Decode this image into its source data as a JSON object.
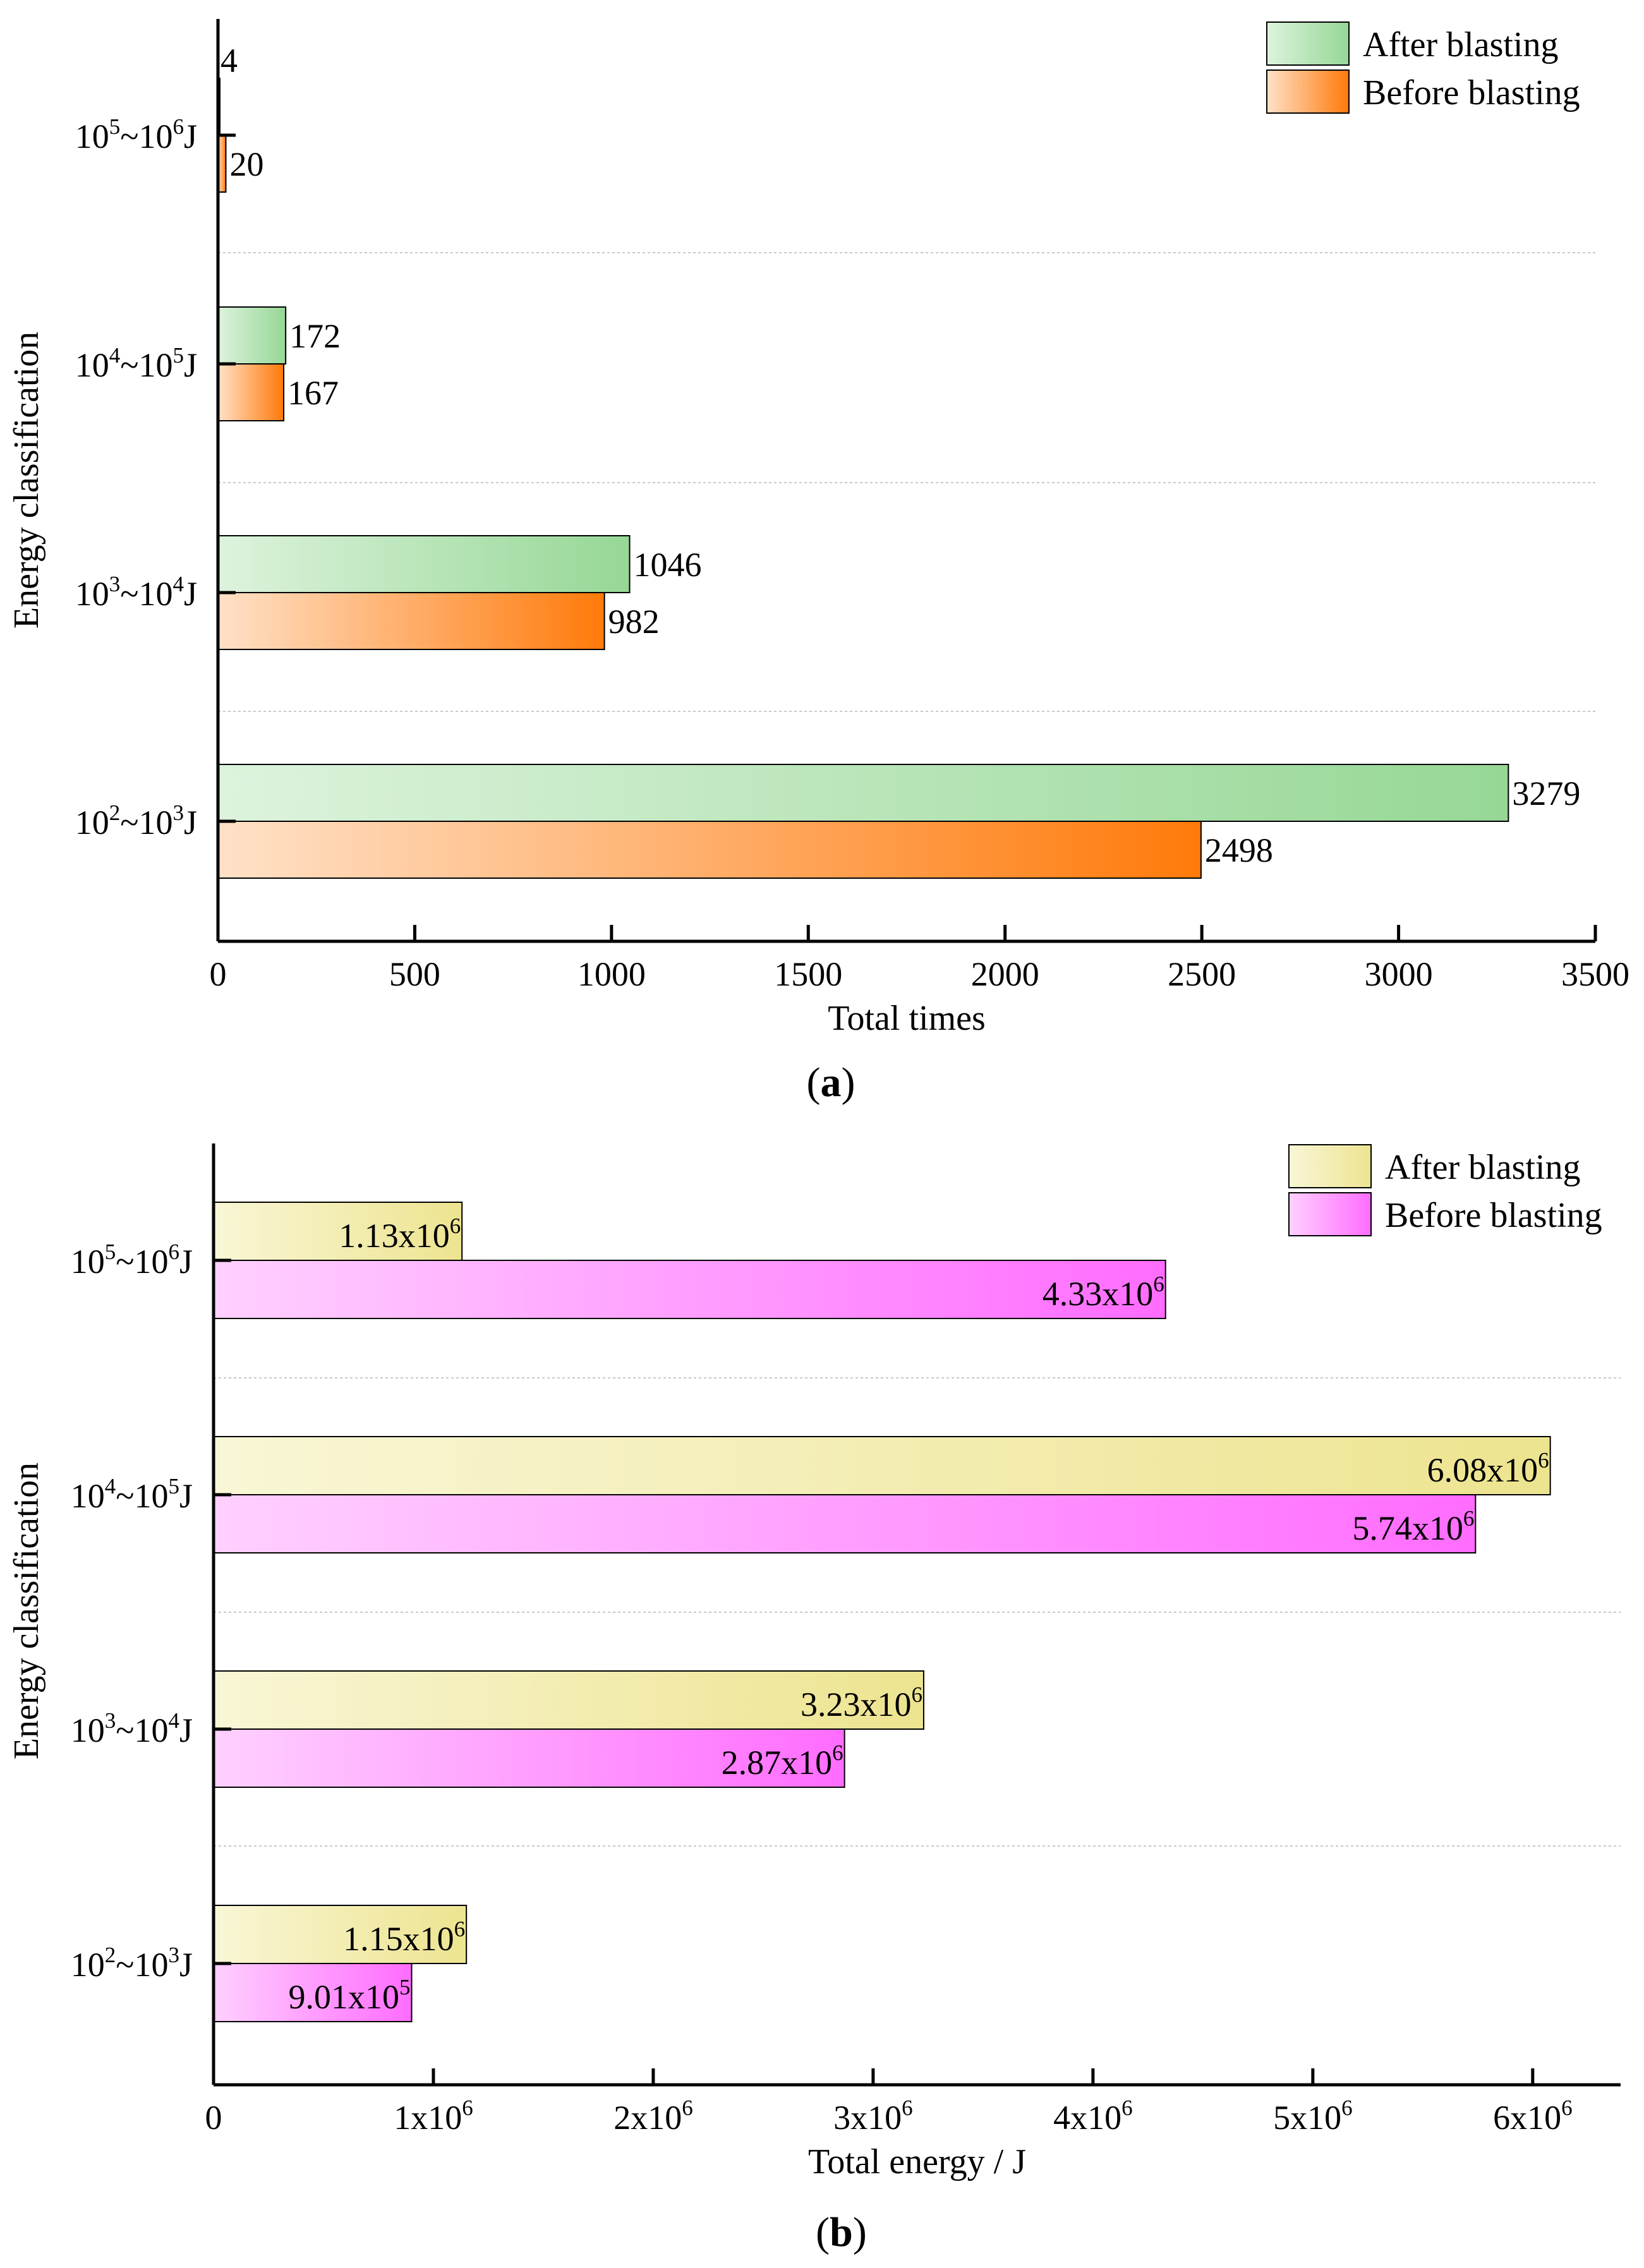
{
  "colors": {
    "green_light": "#DDF3DD",
    "green_dark": "#96D796",
    "orange_light": "#FFE1C8",
    "orange_dark": "#FF7A0A",
    "yellow_light": "#F9F6D6",
    "yellow_dark": "#EDE490",
    "pink_light": "#FFD0FF",
    "pink_dark": "#FF6CFF",
    "gridline": "#C8C8C8"
  },
  "chart_data": [
    {
      "id": "a",
      "type": "bar",
      "orientation": "horizontal",
      "panel_label": "a",
      "title": "",
      "xlabel": "Total times",
      "ylabel": "Energy classification",
      "xlim": [
        0,
        3500
      ],
      "x_ticks": [
        0,
        500,
        1000,
        1500,
        2000,
        2500,
        3000,
        3500
      ],
      "x_tick_labels": [
        "0",
        "500",
        "1000",
        "1500",
        "2000",
        "2500",
        "3000",
        "3500"
      ],
      "categories": [
        {
          "base": "10",
          "e1": "2",
          "mid": "~10",
          "e2": "3",
          "unit": "J"
        },
        {
          "base": "10",
          "e1": "3",
          "mid": "~10",
          "e2": "4",
          "unit": "J"
        },
        {
          "base": "10",
          "e1": "4",
          "mid": "~10",
          "e2": "5",
          "unit": "J"
        },
        {
          "base": "10",
          "e1": "5",
          "mid": "~10",
          "e2": "6",
          "unit": "J"
        }
      ],
      "legend_position": "top-right",
      "series": [
        {
          "name": "After blasting",
          "fill": "green",
          "values": [
            3279,
            1046,
            172,
            4
          ],
          "labels": [
            {
              "text": "3279",
              "sup": ""
            },
            {
              "text": "1046",
              "sup": ""
            },
            {
              "text": "172",
              "sup": ""
            },
            {
              "text": "4",
              "sup": ""
            }
          ]
        },
        {
          "name": "Before blasting",
          "fill": "orange",
          "values": [
            2498,
            982,
            167,
            20
          ],
          "labels": [
            {
              "text": "2498",
              "sup": ""
            },
            {
              "text": "982",
              "sup": ""
            },
            {
              "text": "167",
              "sup": ""
            },
            {
              "text": "20",
              "sup": ""
            }
          ]
        }
      ]
    },
    {
      "id": "b",
      "type": "bar",
      "orientation": "horizontal",
      "panel_label": "b",
      "title": "",
      "xlabel": "Total energy / J",
      "ylabel": "Energy classification",
      "xlim": [
        0,
        6400000
      ],
      "x_ticks": [
        0,
        1000000,
        2000000,
        3000000,
        4000000,
        5000000,
        6000000
      ],
      "x_tick_labels": [
        {
          "text": "0",
          "sup": ""
        },
        {
          "text": "1x10",
          "sup": "6"
        },
        {
          "text": "2x10",
          "sup": "6"
        },
        {
          "text": "3x10",
          "sup": "6"
        },
        {
          "text": "4x10",
          "sup": "6"
        },
        {
          "text": "5x10",
          "sup": "6"
        },
        {
          "text": "6x10",
          "sup": "6"
        }
      ],
      "categories": [
        {
          "base": "10",
          "e1": "2",
          "mid": "~10",
          "e2": "3",
          "unit": "J"
        },
        {
          "base": "10",
          "e1": "3",
          "mid": "~10",
          "e2": "4",
          "unit": "J"
        },
        {
          "base": "10",
          "e1": "4",
          "mid": "~10",
          "e2": "5",
          "unit": "J"
        },
        {
          "base": "10",
          "e1": "5",
          "mid": "~10",
          "e2": "6",
          "unit": "J"
        }
      ],
      "legend_position": "top-right",
      "series": [
        {
          "name": "After blasting",
          "fill": "yellow",
          "values": [
            1150000,
            3230000,
            6080000,
            1130000
          ],
          "labels": [
            {
              "text": "1.15x10",
              "sup": "6"
            },
            {
              "text": "3.23x10",
              "sup": "6"
            },
            {
              "text": "6.08x10",
              "sup": "6"
            },
            {
              "text": "1.13x10",
              "sup": "6"
            }
          ]
        },
        {
          "name": "Before blasting",
          "fill": "pink",
          "values": [
            901000,
            2870000,
            5740000,
            4330000
          ],
          "labels": [
            {
              "text": "9.01x10",
              "sup": "5"
            },
            {
              "text": "2.87x10",
              "sup": "6"
            },
            {
              "text": "5.74x10",
              "sup": "6"
            },
            {
              "text": "4.33x10",
              "sup": "6"
            }
          ]
        }
      ]
    }
  ]
}
